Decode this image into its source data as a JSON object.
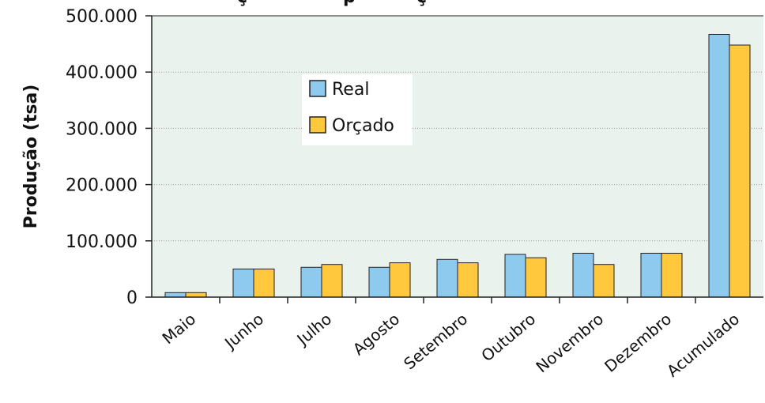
{
  "chart_data": {
    "type": "bar",
    "categories": [
      "Maio",
      "Junho",
      "Julho",
      "Agosto",
      "Setembro",
      "Outubro",
      "Novembro",
      "Dezembro",
      "Acumulado"
    ],
    "series": [
      {
        "name": "Real",
        "color": "#8ec9ee",
        "values": [
          8000,
          50000,
          53000,
          53000,
          67000,
          76000,
          78000,
          78000,
          467000
        ]
      },
      {
        "name": "Orçado",
        "color": "#ffc83d",
        "values": [
          8000,
          50000,
          58000,
          61000,
          61000,
          70000,
          58000,
          78000,
          448000
        ]
      }
    ],
    "ylabel": "Produção (tsa)",
    "ylim": [
      0,
      500000
    ],
    "yticks": [
      {
        "value": 0,
        "label": "0"
      },
      {
        "value": 100000,
        "label": "100.000"
      },
      {
        "value": 200000,
        "label": "200.000"
      },
      {
        "value": 300000,
        "label": "300.000"
      },
      {
        "value": 400000,
        "label": "400.000"
      },
      {
        "value": 500000,
        "label": "500.000"
      }
    ],
    "grid": true,
    "legend_position": "upper-center",
    "plot_background": "#e9f2ec"
  }
}
